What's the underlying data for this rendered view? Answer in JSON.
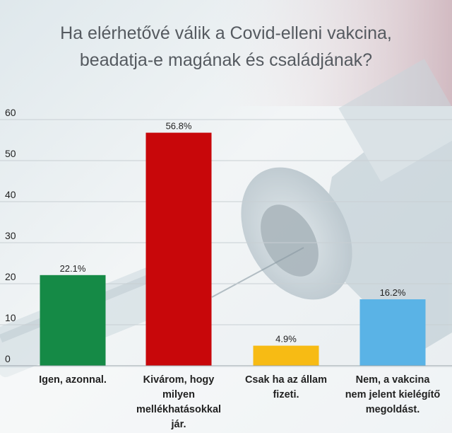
{
  "chart_data": {
    "type": "bar",
    "title_lines": [
      "Ha elérhetővé válik a Covid-elleni vakcina,",
      "beadatja-e magának és családjának?"
    ],
    "categories": [
      [
        "Igen, azonnal."
      ],
      [
        "Kivárom, hogy",
        "milyen",
        "mellékhatásokkal",
        "jár."
      ],
      [
        "Csak ha az állam",
        "fizeti."
      ],
      [
        "Nem, a vakcina",
        "nem jelent kielégítő",
        "megoldást."
      ]
    ],
    "values": [
      22.1,
      56.8,
      4.9,
      16.2
    ],
    "value_labels": [
      "22.1%",
      "56.8%",
      "4.9%",
      "16.2%"
    ],
    "colors": [
      "#158a46",
      "#c8070a",
      "#f7bb14",
      "#5ab3e6"
    ],
    "ylim": [
      0,
      60
    ],
    "yticks": [
      0,
      10,
      20,
      30,
      40,
      50,
      60
    ],
    "xlabel": "",
    "ylabel": "",
    "grid": true
  }
}
